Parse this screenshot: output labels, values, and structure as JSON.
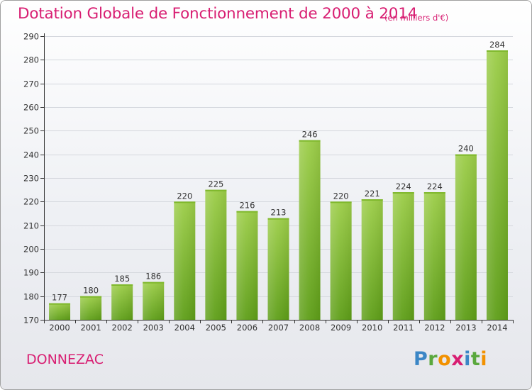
{
  "title": "Dotation Globale de Fonctionnement de 2000 à 2014",
  "unit_note": "(en milliers d'€)",
  "commune": "DONNEZAC",
  "logo": {
    "letters": [
      "P",
      "r",
      "o",
      "x",
      "i",
      "t",
      "i"
    ]
  },
  "colors": {
    "title": "#d81e72",
    "bar_top": "#9ccd48",
    "bar_bottom": "#5e9e18",
    "grid": "#d4d7dd",
    "axis": "#333333"
  },
  "chart_data": {
    "type": "bar",
    "title": "Dotation Globale de Fonctionnement de 2000 à 2014",
    "subtitle": "(en milliers d'€)",
    "xlabel": "",
    "ylabel": "",
    "categories": [
      "2000",
      "2001",
      "2002",
      "2003",
      "2004",
      "2005",
      "2006",
      "2007",
      "2008",
      "2009",
      "2010",
      "2011",
      "2012",
      "2013",
      "2014"
    ],
    "values": [
      177,
      180,
      185,
      186,
      220,
      225,
      216,
      213,
      246,
      220,
      221,
      224,
      224,
      240,
      284
    ],
    "ylim": [
      170,
      290
    ],
    "yticks": [
      170,
      180,
      190,
      200,
      210,
      220,
      230,
      240,
      250,
      260,
      270,
      280,
      290
    ],
    "grid": true,
    "legend": "none"
  }
}
